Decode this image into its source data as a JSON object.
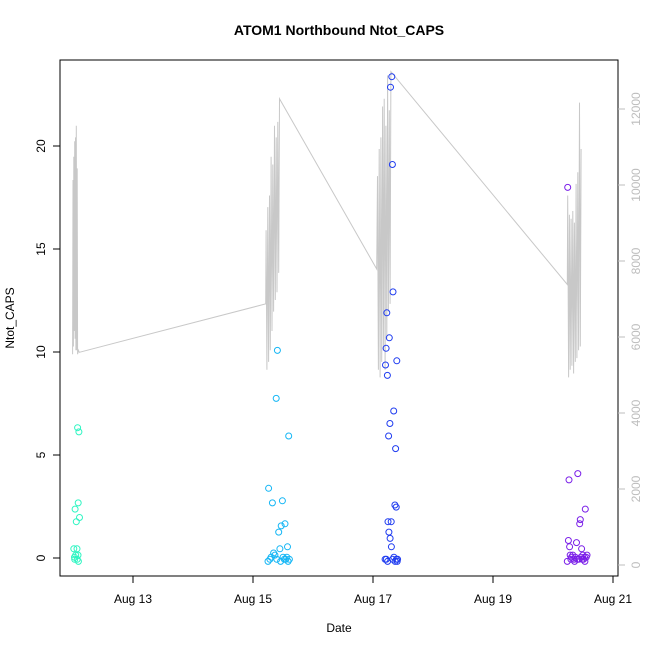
{
  "chart_data": {
    "type": "scatter",
    "title": "ATOM1 Northbound Ntot_CAPS",
    "xlabel": "Date",
    "ylabel": "Ntot_CAPS",
    "x_ticks": [
      "Aug 13",
      "Aug 15",
      "Aug 17",
      "Aug 19",
      "Aug 21"
    ],
    "y_ticks": [
      "0",
      "5",
      "10",
      "15",
      "20"
    ],
    "y2_ticks": [
      "0",
      "2000",
      "4000",
      "6000",
      "8000",
      "10000",
      "12000"
    ],
    "xlim": [
      "2023-08-12 00:00",
      "2023-08-21 06:00"
    ],
    "ylim": [
      -0.6,
      24.1
    ],
    "y2lim": [
      -330,
      13000
    ],
    "grid": false,
    "colors": {
      "secondary_line": "#c8c8c8",
      "axis": "#000000",
      "right_axis": "#bdbdbd",
      "segment1": "#2ef5c2",
      "segment2": "#14b6f5",
      "segment3": "#1f3cf0",
      "segment4": "#7a1fe8"
    },
    "series": [
      {
        "color": "#2ef5c2",
        "points": [
          [
            "2023-08-12 06:00",
            2.6
          ],
          [
            "2023-08-12 06:30",
            2.0
          ],
          [
            "2023-08-12 07:00",
            6.5
          ],
          [
            "2023-08-12 07:30",
            6.3
          ],
          [
            "2023-08-12 07:15",
            2.9
          ],
          [
            "2023-08-12 07:45",
            2.2
          ],
          [
            "2023-08-12 05:30",
            0.7
          ],
          [
            "2023-08-12 06:45",
            0.7
          ],
          [
            "2023-08-12 05:45",
            0.3
          ],
          [
            "2023-08-12 06:15",
            0.4
          ],
          [
            "2023-08-12 06:50",
            0.2
          ],
          [
            "2023-08-12 07:10",
            0.4
          ],
          [
            "2023-08-12 07:20",
            0.1
          ],
          [
            "2023-08-12 05:50",
            0.2
          ]
        ]
      },
      {
        "color": "#14b6f5",
        "points": [
          [
            "2023-08-15 11:00",
            3.6
          ],
          [
            "2023-08-15 12:30",
            2.9
          ],
          [
            "2023-08-15 14:00",
            7.9
          ],
          [
            "2023-08-15 14:30",
            10.2
          ],
          [
            "2023-08-15 16:30",
            3.0
          ],
          [
            "2023-08-15 16:00",
            1.8
          ],
          [
            "2023-08-15 15:00",
            1.5
          ],
          [
            "2023-08-15 17:30",
            1.9
          ],
          [
            "2023-08-15 19:00",
            6.1
          ],
          [
            "2023-08-15 18:30",
            0.8
          ],
          [
            "2023-08-15 15:30",
            0.7
          ],
          [
            "2023-08-15 13:00",
            0.5
          ],
          [
            "2023-08-15 11:30",
            0.2
          ],
          [
            "2023-08-15 12:00",
            0.3
          ],
          [
            "2023-08-15 13:30",
            0.4
          ],
          [
            "2023-08-15 16:45",
            0.3
          ],
          [
            "2023-08-15 17:15",
            0.2
          ],
          [
            "2023-08-15 17:50",
            0.2
          ],
          [
            "2023-08-15 18:15",
            0.3
          ],
          [
            "2023-08-15 19:15",
            0.2
          ],
          [
            "2023-08-15 10:45",
            0.1
          ],
          [
            "2023-08-15 14:15",
            0.2
          ],
          [
            "2023-08-15 15:45",
            0.1
          ],
          [
            "2023-08-15 18:45",
            0.1
          ]
        ]
      },
      {
        "color": "#1f3cf0",
        "points": [
          [
            "2023-08-17 11:30",
            22.8
          ],
          [
            "2023-08-17 12:00",
            23.3
          ],
          [
            "2023-08-17 12:15",
            19.1
          ],
          [
            "2023-08-17 12:30",
            13.0
          ],
          [
            "2023-08-17 10:00",
            12.0
          ],
          [
            "2023-08-17 11:00",
            10.8
          ],
          [
            "2023-08-17 09:45",
            10.3
          ],
          [
            "2023-08-17 09:30",
            9.5
          ],
          [
            "2023-08-17 10:15",
            9.0
          ],
          [
            "2023-08-17 14:00",
            9.7
          ],
          [
            "2023-08-17 11:15",
            6.7
          ],
          [
            "2023-08-17 12:45",
            7.3
          ],
          [
            "2023-08-17 10:45",
            6.1
          ],
          [
            "2023-08-17 13:30",
            5.5
          ],
          [
            "2023-08-17 13:15",
            2.8
          ],
          [
            "2023-08-17 13:45",
            2.7
          ],
          [
            "2023-08-17 10:30",
            2.0
          ],
          [
            "2023-08-17 11:45",
            2.0
          ],
          [
            "2023-08-17 10:50",
            1.5
          ],
          [
            "2023-08-17 11:20",
            1.2
          ],
          [
            "2023-08-17 11:50",
            0.8
          ],
          [
            "2023-08-17 09:20",
            0.2
          ],
          [
            "2023-08-17 09:50",
            0.2
          ],
          [
            "2023-08-17 10:20",
            0.1
          ],
          [
            "2023-08-17 12:20",
            0.2
          ],
          [
            "2023-08-17 12:50",
            0.3
          ],
          [
            "2023-08-17 13:20",
            0.1
          ],
          [
            "2023-08-17 13:50",
            0.2
          ],
          [
            "2023-08-17 14:10",
            0.1
          ],
          [
            "2023-08-17 14:20",
            0.2
          ]
        ]
      },
      {
        "color": "#7a1fe8",
        "points": [
          [
            "2023-08-20 10:00",
            18.0
          ],
          [
            "2023-08-20 10:30",
            4.0
          ],
          [
            "2023-08-20 10:15",
            1.1
          ],
          [
            "2023-08-20 10:45",
            0.8
          ],
          [
            "2023-08-20 14:00",
            4.3
          ],
          [
            "2023-08-20 15:00",
            2.1
          ],
          [
            "2023-08-20 14:45",
            1.9
          ],
          [
            "2023-08-20 17:00",
            2.6
          ],
          [
            "2023-08-20 13:30",
            1.0
          ],
          [
            "2023-08-20 15:30",
            0.7
          ],
          [
            "2023-08-20 12:00",
            0.4
          ],
          [
            "2023-08-20 11:00",
            0.4
          ],
          [
            "2023-08-20 11:30",
            0.3
          ],
          [
            "2023-08-20 12:30",
            0.2
          ],
          [
            "2023-08-20 13:00",
            0.3
          ],
          [
            "2023-08-20 14:20",
            0.2
          ],
          [
            "2023-08-20 15:15",
            0.3
          ],
          [
            "2023-08-20 15:45",
            0.2
          ],
          [
            "2023-08-20 16:00",
            0.4
          ],
          [
            "2023-08-20 16:20",
            0.2
          ],
          [
            "2023-08-20 16:40",
            0.3
          ],
          [
            "2023-08-20 17:20",
            0.3
          ],
          [
            "2023-08-20 17:40",
            0.4
          ],
          [
            "2023-08-20 09:50",
            0.1
          ],
          [
            "2023-08-20 11:15",
            0.2
          ],
          [
            "2023-08-20 12:45",
            0.1
          ],
          [
            "2023-08-20 13:45",
            0.2
          ],
          [
            "2023-08-20 16:50",
            0.1
          ]
        ]
      }
    ],
    "secondary_series": {
      "axis": "right",
      "type": "line",
      "color": "#c8c8c8",
      "points": [
        [
          "2023-08-12 05:00",
          5400
        ],
        [
          "2023-08-12 05:10",
          9900
        ],
        [
          "2023-08-12 05:20",
          5600
        ],
        [
          "2023-08-12 05:30",
          10500
        ],
        [
          "2023-08-12 05:40",
          6000
        ],
        [
          "2023-08-12 05:50",
          10900
        ],
        [
          "2023-08-12 06:00",
          5800
        ],
        [
          "2023-08-12 06:10",
          11000
        ],
        [
          "2023-08-12 06:20",
          5500
        ],
        [
          "2023-08-12 06:30",
          11300
        ],
        [
          "2023-08-12 06:40",
          5500
        ],
        [
          "2023-08-12 06:50",
          10200
        ],
        [
          "2023-08-12 07:00",
          5400
        ],
        [
          "2023-08-12 07:20",
          5500
        ],
        [
          "2023-08-12 07:40",
          5450
        ],
        [
          "2023-08-15 09:50",
          6700
        ],
        [
          "2023-08-15 10:00",
          8600
        ],
        [
          "2023-08-15 10:20",
          5000
        ],
        [
          "2023-08-15 10:40",
          9200
        ],
        [
          "2023-08-15 11:00",
          5200
        ],
        [
          "2023-08-15 11:20",
          9500
        ],
        [
          "2023-08-15 11:40",
          5500
        ],
        [
          "2023-08-15 12:00",
          10500
        ],
        [
          "2023-08-15 12:20",
          6000
        ],
        [
          "2023-08-15 12:40",
          10300
        ],
        [
          "2023-08-15 13:00",
          6500
        ],
        [
          "2023-08-15 13:20",
          11300
        ],
        [
          "2023-08-15 13:40",
          6800
        ],
        [
          "2023-08-15 14:00",
          11000
        ],
        [
          "2023-08-15 14:20",
          7000
        ],
        [
          "2023-08-15 14:40",
          11400
        ],
        [
          "2023-08-15 15:00",
          7500
        ],
        [
          "2023-08-15 15:20",
          12000
        ],
        [
          "2023-08-17 06:00",
          7600
        ],
        [
          "2023-08-17 06:20",
          10000
        ],
        [
          "2023-08-17 06:40",
          5000
        ],
        [
          "2023-08-17 07:00",
          10700
        ],
        [
          "2023-08-17 07:20",
          4800
        ],
        [
          "2023-08-17 07:40",
          11000
        ],
        [
          "2023-08-17 08:00",
          5200
        ],
        [
          "2023-08-17 08:20",
          11800
        ],
        [
          "2023-08-17 08:40",
          5500
        ],
        [
          "2023-08-17 09:00",
          12000
        ],
        [
          "2023-08-17 09:20",
          5000
        ],
        [
          "2023-08-17 09:40",
          11300
        ],
        [
          "2023-08-17 10:00",
          5800
        ],
        [
          "2023-08-17 10:20",
          12600
        ],
        [
          "2023-08-17 10:40",
          6500
        ],
        [
          "2023-08-17 11:00",
          11700
        ],
        [
          "2023-08-17 11:20",
          6700
        ],
        [
          "2023-08-17 11:40",
          12700
        ],
        [
          "2023-08-20 09:50",
          7200
        ],
        [
          "2023-08-20 10:00",
          9500
        ],
        [
          "2023-08-20 10:20",
          4800
        ],
        [
          "2023-08-20 10:40",
          9000
        ],
        [
          "2023-08-20 11:00",
          5000
        ],
        [
          "2023-08-20 11:20",
          8900
        ],
        [
          "2023-08-20 11:40",
          5100
        ],
        [
          "2023-08-20 12:00",
          9100
        ],
        [
          "2023-08-20 12:20",
          4900
        ],
        [
          "2023-08-20 12:40",
          8800
        ],
        [
          "2023-08-20 13:00",
          5200
        ],
        [
          "2023-08-20 13:20",
          9800
        ],
        [
          "2023-08-20 13:40",
          5300
        ],
        [
          "2023-08-20 14:00",
          10100
        ],
        [
          "2023-08-20 14:20",
          5500
        ],
        [
          "2023-08-20 14:40",
          11900
        ],
        [
          "2023-08-20 15:00",
          5600
        ],
        [
          "2023-08-20 15:20",
          10700
        ]
      ]
    }
  }
}
